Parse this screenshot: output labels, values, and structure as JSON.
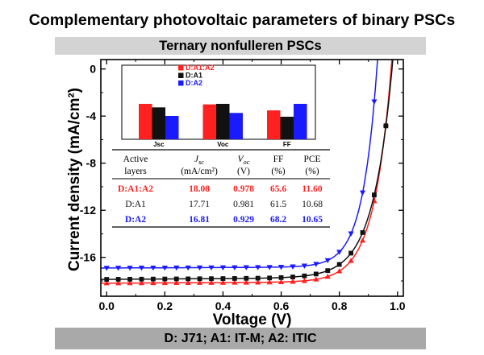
{
  "header": {
    "title": "Complementary photovoltaic parameters of binary PSCs",
    "subtitle": "Ternary nonfulleren PSCs",
    "footer": "D: J71;     A1: IT-M;     A2: ITIC"
  },
  "colors": {
    "red": "#ff2020",
    "black": "#111111",
    "blue": "#1a1aff"
  },
  "chart_data": {
    "type": "line",
    "title": "Ternary nonfulleren PSCs",
    "xlabel": "Voltage (V)",
    "ylabel": "Current density (mA/cm²)",
    "xlim": [
      -0.02,
      1.02
    ],
    "ylim": [
      -19.3,
      0.8
    ],
    "xticks": [
      "0.0",
      "0.2",
      "0.4",
      "0.6",
      "0.8",
      "1.0"
    ],
    "yticks": [
      "0",
      "-4",
      "-8",
      "-12",
      "-16"
    ],
    "series": [
      {
        "name": "D:A1:A2",
        "color": "red",
        "marker": "triangle-up",
        "Jsc": 18.08,
        "Voc": 0.978,
        "FF": 65.6
      },
      {
        "name": "D:A1",
        "color": "black",
        "marker": "square",
        "Jsc": 17.71,
        "Voc": 0.981,
        "FF": 61.5
      },
      {
        "name": "D:A2",
        "color": "blue",
        "marker": "triangle-down",
        "Jsc": 16.81,
        "Voc": 0.929,
        "FF": 68.2
      }
    ],
    "inset": {
      "type": "bar",
      "categories": [
        "Jsc",
        "Voc",
        "FF"
      ],
      "legend": [
        "D:A1:A2",
        "D:A1",
        "D:A2"
      ],
      "values": {
        "D:A1:A2": [
          18.08,
          0.978,
          65.6
        ],
        "D:A1": [
          17.71,
          0.981,
          61.5
        ],
        "D:A2": [
          16.81,
          0.929,
          68.2
        ]
      }
    },
    "table": {
      "headers": [
        [
          "Active",
          "J",
          "V",
          "FF",
          "PCE"
        ],
        [
          "layers",
          "(mA/cm²)",
          "(V)",
          "(%)",
          "(%)"
        ]
      ],
      "header_subscripts": [
        "sc",
        "oc"
      ],
      "rows": [
        {
          "label": "D:A1:A2",
          "jsc": "18.08",
          "voc": "0.978",
          "ff": "65.6",
          "pce": "11.60",
          "color": "red"
        },
        {
          "label": "D:A1",
          "jsc": "17.71",
          "voc": "0.981",
          "ff": "61.5",
          "pce": "10.68",
          "color": "black"
        },
        {
          "label": "D:A2",
          "jsc": "16.81",
          "voc": "0.929",
          "ff": "68.2",
          "pce": "10.65",
          "color": "blue"
        }
      ]
    }
  }
}
